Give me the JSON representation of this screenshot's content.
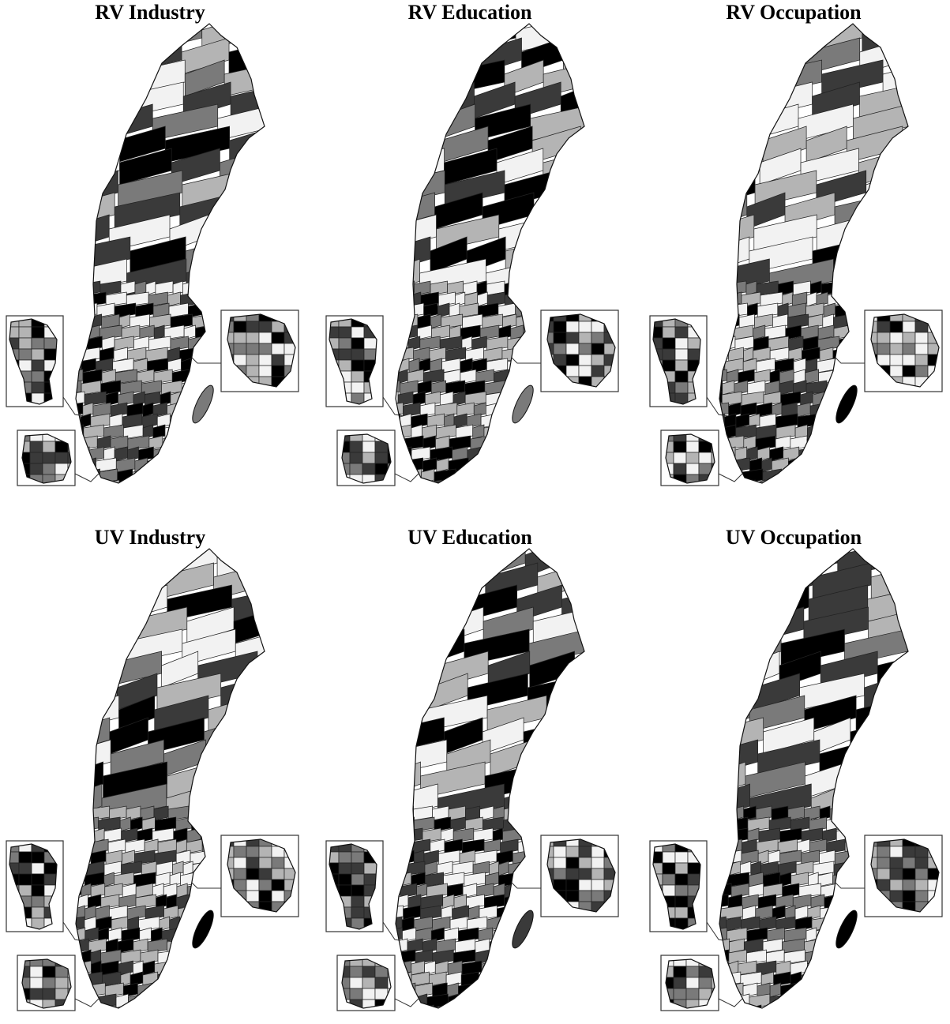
{
  "maps": [
    {
      "title": "RV Industry"
    },
    {
      "title": "RV Education"
    },
    {
      "title": "RV Occupation"
    },
    {
      "title": "UV Industry"
    },
    {
      "title": "UV Education"
    },
    {
      "title": "UV Occupation"
    }
  ]
}
